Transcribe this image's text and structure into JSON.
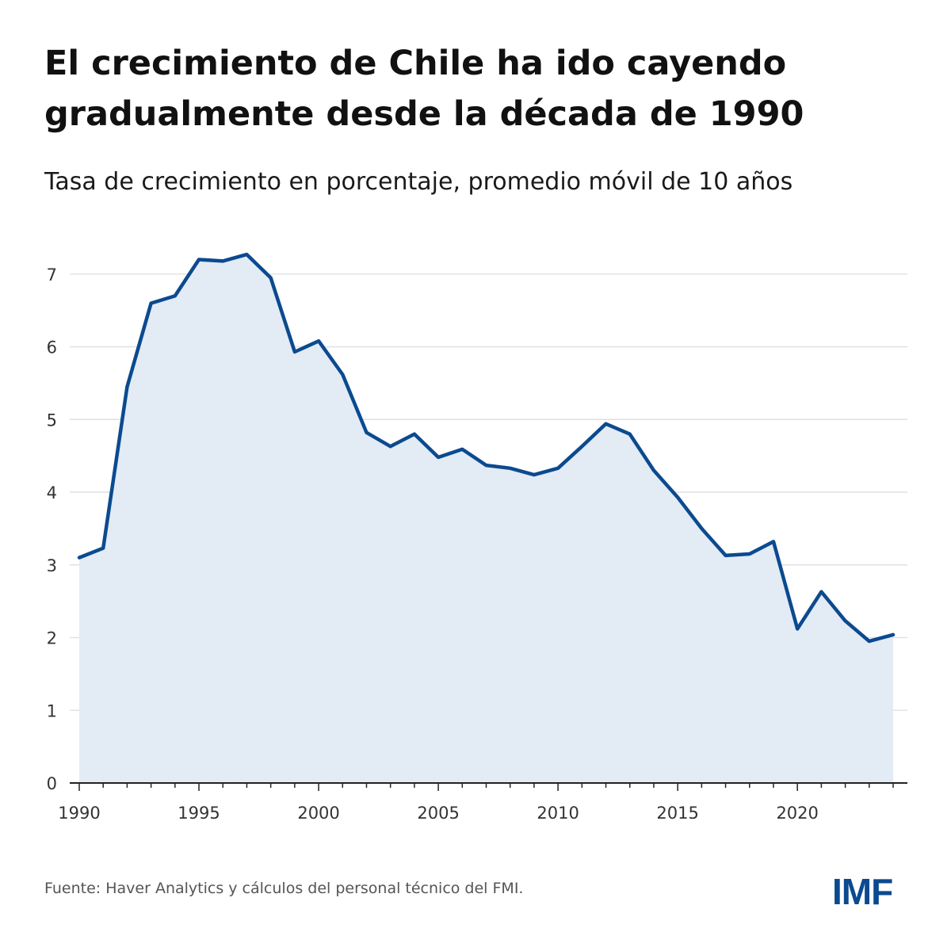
{
  "header": {
    "title": "El crecimiento de Chile ha ido cayendo gradualmente desde la década de 1990",
    "subtitle": "Tasa de crecimiento en porcentaje, promedio móvil de 10 años"
  },
  "footer": {
    "source": "Fuente: Haver Analytics y cálculos del personal técnico del FMI.",
    "logo_text": "IMF"
  },
  "colors": {
    "line": "#0b4a8f",
    "area": "#e3ebf5",
    "grid": "#dddddd",
    "axis": "#222222",
    "logo": "#0b4a8f"
  },
  "chart_data": {
    "type": "area",
    "title": "El crecimiento de Chile ha ido cayendo gradualmente desde la década de 1990",
    "subtitle": "Tasa de crecimiento en porcentaje, promedio móvil de 10 años",
    "xlabel": "",
    "ylabel": "",
    "x": [
      1990,
      1991,
      1992,
      1993,
      1994,
      1995,
      1996,
      1997,
      1998,
      1999,
      2000,
      2001,
      2002,
      2003,
      2004,
      2005,
      2006,
      2007,
      2008,
      2009,
      2010,
      2011,
      2012,
      2013,
      2014,
      2015,
      2016,
      2017,
      2018,
      2019,
      2020,
      2021,
      2022,
      2023,
      2024
    ],
    "values": [
      3.1,
      3.23,
      5.45,
      6.6,
      6.7,
      7.2,
      7.18,
      7.27,
      6.95,
      5.93,
      6.08,
      5.62,
      4.82,
      4.63,
      4.8,
      4.48,
      4.59,
      4.37,
      4.33,
      4.24,
      4.33,
      4.63,
      4.94,
      4.8,
      4.3,
      3.93,
      3.5,
      3.13,
      3.15,
      3.32,
      2.12,
      2.63,
      2.23,
      1.95,
      2.04
    ],
    "xlim": [
      1990,
      2024
    ],
    "ylim": [
      0,
      7.5
    ],
    "y_ticks": [
      0,
      1,
      2,
      3,
      4,
      5,
      6,
      7
    ],
    "x_ticks": [
      1990,
      1995,
      2000,
      2005,
      2010,
      2015,
      2020
    ],
    "grid": true,
    "legend": "none"
  }
}
